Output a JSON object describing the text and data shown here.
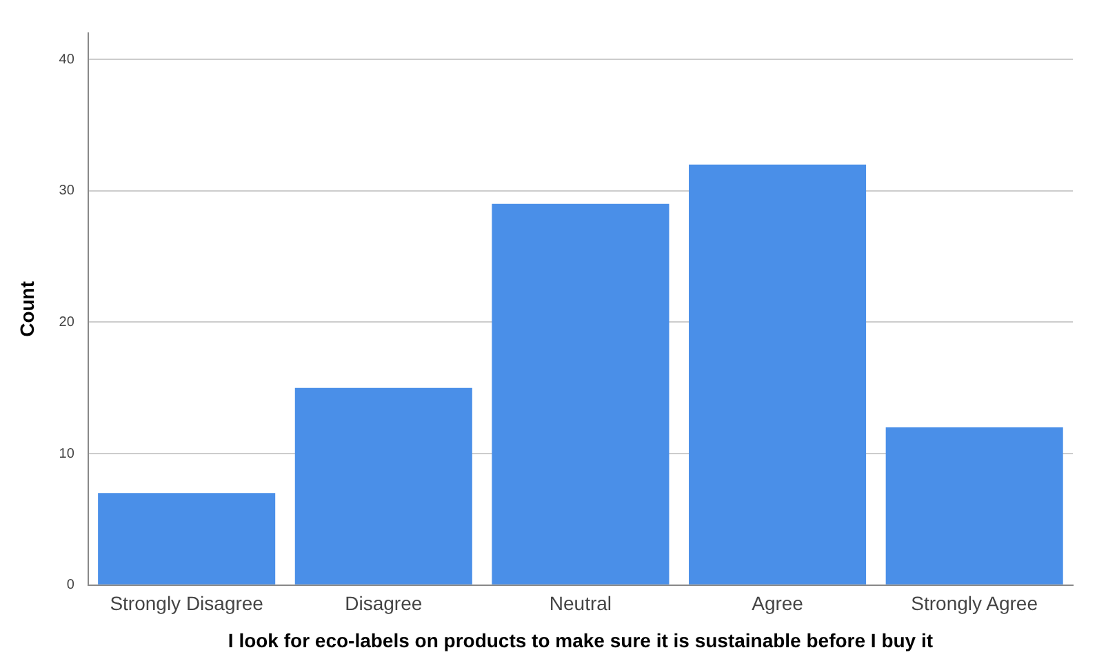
{
  "chart_data": {
    "type": "bar",
    "xlabel": "I look for eco-labels on products to make sure it is sustainable before I buy it",
    "ylabel": "Count",
    "categories": [
      "Strongly Disagree",
      "Disagree",
      "Neutral",
      "Agree",
      "Strongly Agree"
    ],
    "values": [
      7,
      15,
      29,
      32,
      12
    ],
    "color": "#4a8fe8",
    "ylim": [
      0,
      42
    ],
    "yticks": [
      0,
      10,
      20,
      30,
      40
    ],
    "grid": "y",
    "legend": false
  }
}
